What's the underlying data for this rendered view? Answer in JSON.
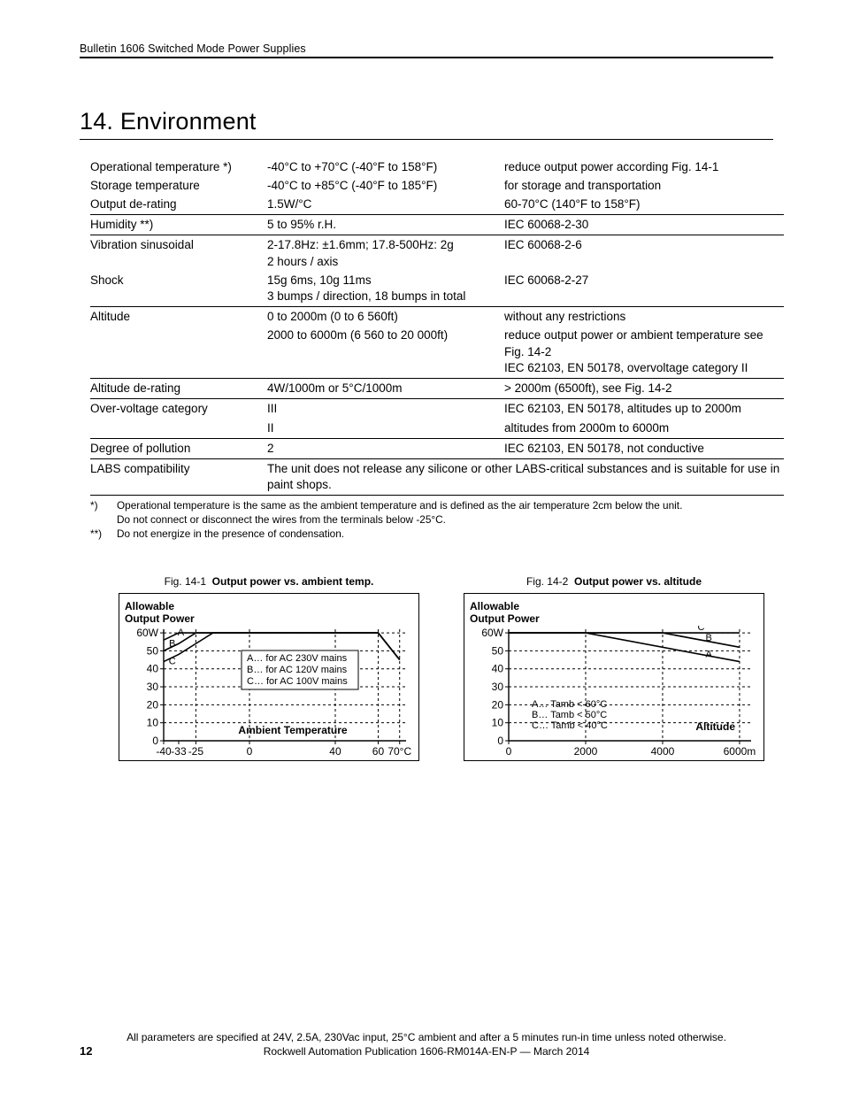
{
  "header": {
    "doc_title": "Bulletin 1606 Switched Mode Power Supplies"
  },
  "section": {
    "number": "14.",
    "title": "Environment"
  },
  "table": {
    "rows": [
      {
        "label": "Operational temperature *)",
        "val": "-40°C to +70°C (-40°F to 158°F)",
        "note": "reduce output power according Fig. 14-1"
      },
      {
        "label": "Storage temperature",
        "val": "-40°C to +85°C (-40°F to 185°F)",
        "note": "for storage and transportation"
      },
      {
        "label": "Output de-rating",
        "val": "1.5W/°C",
        "note": "60-70°C   (140°F to 158°F)",
        "rule": true
      },
      {
        "label": "Humidity **)",
        "val": "5 to 95% r.H.",
        "note": "IEC 60068-2-30",
        "rule": true
      },
      {
        "label": "Vibration sinusoidal",
        "val": "2-17.8Hz: ±1.6mm; 17.8-500Hz: 2g\n2 hours / axis",
        "note": "IEC 60068-2-6"
      },
      {
        "label": "Shock",
        "val": "15g 6ms, 10g 11ms\n3 bumps / direction, 18 bumps in total",
        "note": "IEC 60068-2-27",
        "rule": true
      },
      {
        "label": "Altitude",
        "val": "0 to 2000m  (0 to 6 560ft)",
        "note": "without any restrictions"
      },
      {
        "label": "",
        "val": "2000 to 6000m  (6 560 to 20 000ft)",
        "note": "reduce output power or ambient temperature see Fig. 14-2\nIEC 62103, EN 50178, overvoltage category II",
        "rule": true
      },
      {
        "label": "Altitude de-rating",
        "val": "4W/1000m or 5°C/1000m",
        "note": "> 2000m (6500ft), see Fig. 14-2",
        "rule": true
      },
      {
        "label": "Over-voltage category",
        "val": "III",
        "note": "IEC 62103, EN 50178, altitudes up to 2000m"
      },
      {
        "label": "",
        "val": "II",
        "note": "altitudes from 2000m to 6000m",
        "rule": true
      },
      {
        "label": "Degree of pollution",
        "val": "2",
        "note": "IEC 62103, EN 50178, not conductive",
        "rule": true
      },
      {
        "label": "LABS compatibility",
        "val_span": "The unit does not release any silicone or other LABS-critical substances and is suitable for use in paint shops.",
        "rule": true
      }
    ]
  },
  "footnotes": [
    {
      "mark": "*)",
      "text": "Operational temperature is the same as the ambient temperature and is defined as the air temperature 2cm below the unit.\nDo not connect or disconnect the wires from the terminals below -25°C."
    },
    {
      "mark": "**)",
      "text": "Do not energize in the presence of condensation."
    }
  ],
  "chart1": {
    "caption_no": "Fig. 14-1",
    "caption_title": "Output power vs. ambient temp.",
    "ylabel": "Allowable\nOutput Power",
    "xlabel": "Ambient Temperature",
    "y_ticks": [
      "60W",
      "50",
      "40",
      "30",
      "20",
      "10",
      "0"
    ],
    "y_vals": [
      60,
      50,
      40,
      30,
      20,
      10,
      0
    ],
    "x_ticks": [
      "-40",
      "-33",
      "-25",
      "0",
      "40",
      "60",
      "70°C"
    ],
    "x_vals": [
      -40,
      -33,
      -25,
      0,
      40,
      60,
      70
    ],
    "x_grid": [
      -25,
      0,
      40,
      60,
      70
    ],
    "legend": [
      "A… for AC 230V mains",
      "B… for AC 120V mains",
      "C… for AC 100V mains"
    ],
    "series": {
      "A": [
        [
          -40,
          56
        ],
        [
          -33,
          60
        ],
        [
          60,
          60
        ],
        [
          70,
          45
        ]
      ],
      "B": [
        [
          -40,
          50
        ],
        [
          -33,
          54
        ],
        [
          -25,
          60
        ],
        [
          60,
          60
        ],
        [
          70,
          45
        ]
      ],
      "C": [
        [
          -40,
          44
        ],
        [
          -33,
          48
        ],
        [
          -25,
          54
        ],
        [
          -17,
          60
        ],
        [
          60,
          60
        ],
        [
          70,
          45
        ]
      ]
    },
    "label_pos": {
      "A": [
        -32,
        60
      ],
      "B": [
        -36,
        54
      ],
      "C": [
        -36,
        44
      ]
    },
    "xlim": [
      -40,
      73
    ],
    "ylim": [
      0,
      62
    ],
    "line_color": "#000000",
    "grid_style": "3,3"
  },
  "chart2": {
    "caption_no": "Fig. 14-2",
    "caption_title": "Output power vs. altitude",
    "ylabel": "Allowable\nOutput Power",
    "xlabel": "Altitude",
    "y_ticks": [
      "60W",
      "50",
      "40",
      "30",
      "20",
      "10",
      "0"
    ],
    "y_vals": [
      60,
      50,
      40,
      30,
      20,
      10,
      0
    ],
    "x_ticks": [
      "0",
      "2000",
      "4000",
      "6000m"
    ],
    "x_vals": [
      0,
      2000,
      4000,
      6000
    ],
    "x_grid": [
      2000,
      4000,
      6000
    ],
    "legend": [
      "A… Tamb < 60°C",
      "B… Tamb < 50°C",
      "C… Tamb < 40°C"
    ],
    "series": {
      "A": [
        [
          0,
          60
        ],
        [
          2000,
          60
        ],
        [
          6000,
          44
        ]
      ],
      "B": [
        [
          0,
          60
        ],
        [
          4000,
          60
        ],
        [
          6000,
          52
        ]
      ],
      "C": [
        [
          0,
          60
        ],
        [
          6000,
          60
        ]
      ]
    },
    "label_pos": {
      "A": [
        5200,
        48
      ],
      "B": [
        5200,
        57
      ],
      "C": [
        5000,
        63
      ]
    },
    "xlim": [
      0,
      6300
    ],
    "ylim": [
      0,
      62
    ],
    "line_color": "#000000",
    "grid_style": "3,3"
  },
  "footer": {
    "line1": "All parameters are specified at 24V, 2.5A, 230Vac input, 25°C ambient and after a 5 minutes run-in time unless noted otherwise.",
    "line2": "Rockwell Automation Publication 1606-RM014A-EN-P — March 2014",
    "page": "12"
  },
  "colors": {
    "text": "#000000",
    "rule": "#000000",
    "bg": "#ffffff"
  }
}
